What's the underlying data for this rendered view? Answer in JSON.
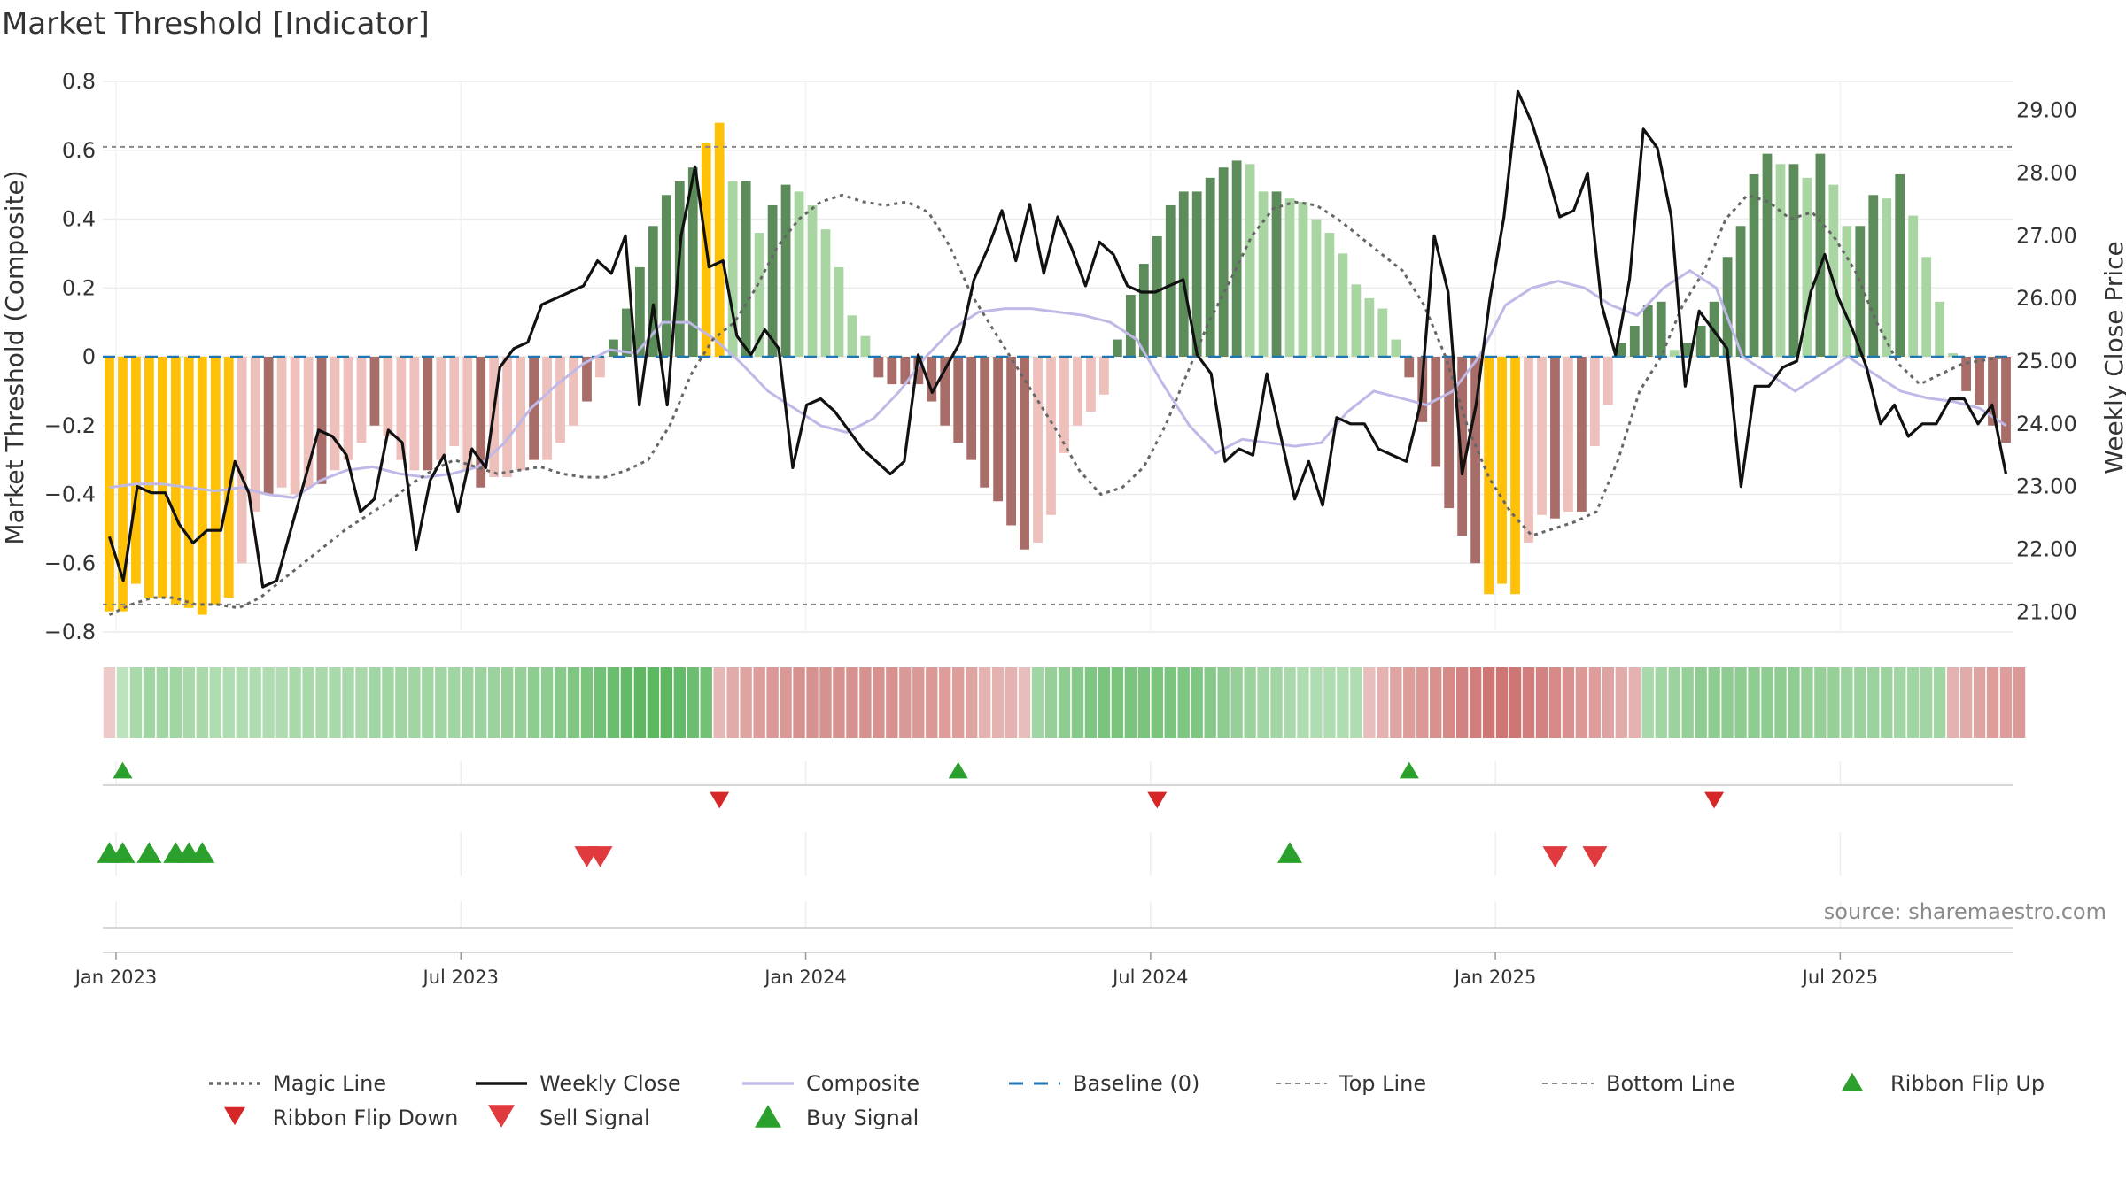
{
  "colors": {
    "gold": "#ffc107",
    "bull_strong": "#5b8c5a",
    "bull_light": "#a8d5a2",
    "bear_strong": "#a86d68",
    "bear_light": "#eec0bb",
    "weekly_close": "#111111",
    "composite": "#c0b8e6",
    "magic_line": "#666666",
    "baseline": "#1f77b4",
    "threshold_line": "#888888",
    "buy": "#2ca02c",
    "sell": "#d62728",
    "ribbon_green": "#4caf50",
    "ribbon_red": "#c0504d"
  },
  "chart_data": {
    "type": "bar",
    "title": "Market Threshold [Indicator]",
    "ylabel_left": "Market Threshold (Composite)",
    "ylabel_right": "Weekly Close Price",
    "source": "source: sharemaestro.com",
    "ylim_left": [
      -0.8,
      0.8
    ],
    "ylim_right": [
      20.68,
      29.46
    ],
    "yticks_left": [
      "0.8",
      "0.6",
      "0.4",
      "0.2",
      "0",
      "−0.2",
      "−0.4",
      "−0.6",
      "−0.8"
    ],
    "yticks_left_values": [
      0.8,
      0.6,
      0.4,
      0.2,
      0,
      -0.2,
      -0.4,
      -0.6,
      -0.8
    ],
    "yticks_right": [
      "29.00",
      "28.00",
      "27.00",
      "26.00",
      "25.00",
      "24.00",
      "23.00",
      "22.00",
      "21.00"
    ],
    "yticks_right_values": [
      29,
      28,
      27,
      26,
      25,
      24,
      23,
      22,
      21
    ],
    "xticks": [
      "Jan 2023",
      "Jul 2023",
      "Jan 2024",
      "Jul 2024",
      "Jan 2025",
      "Jul 2025"
    ],
    "xticks_week": [
      1,
      27,
      53,
      79,
      105,
      131
    ],
    "top_line": 0.61,
    "bottom_line": -0.72,
    "weeks": 144,
    "bars": [
      -0.74,
      -0.74,
      -0.66,
      -0.7,
      -0.7,
      -0.72,
      -0.73,
      -0.75,
      -0.72,
      -0.7,
      -0.6,
      -0.45,
      -0.4,
      -0.38,
      -0.4,
      -0.38,
      -0.37,
      -0.33,
      -0.3,
      -0.25,
      -0.2,
      -0.23,
      -0.3,
      -0.33,
      -0.33,
      -0.3,
      -0.26,
      -0.33,
      -0.38,
      -0.35,
      -0.35,
      -0.33,
      -0.3,
      -0.3,
      -0.25,
      -0.2,
      -0.13,
      -0.06,
      0.05,
      0.14,
      0.26,
      0.38,
      0.47,
      0.51,
      0.55,
      0.62,
      0.68,
      0.51,
      0.51,
      0.36,
      0.44,
      0.5,
      0.48,
      0.44,
      0.37,
      0.26,
      0.12,
      0.06,
      -0.06,
      -0.08,
      -0.08,
      -0.08,
      -0.13,
      -0.2,
      -0.25,
      -0.3,
      -0.38,
      -0.42,
      -0.49,
      -0.56,
      -0.54,
      -0.46,
      -0.28,
      -0.2,
      -0.16,
      -0.11,
      0.05,
      0.18,
      0.27,
      0.35,
      0.44,
      0.48,
      0.48,
      0.52,
      0.55,
      0.57,
      0.56,
      0.48,
      0.48,
      0.46,
      0.45,
      0.4,
      0.36,
      0.3,
      0.21,
      0.17,
      0.14,
      0.05,
      -0.06,
      -0.19,
      -0.32,
      -0.44,
      -0.52,
      -0.6,
      -0.69,
      -0.66,
      -0.69,
      -0.54,
      -0.46,
      -0.47,
      -0.45,
      -0.45,
      -0.26,
      -0.14,
      0.04,
      0.09,
      0.15,
      0.16,
      0.02,
      0.04,
      0.09,
      0.16,
      0.29,
      0.38,
      0.53,
      0.59,
      0.56,
      0.56,
      0.52,
      0.59,
      0.5,
      0.38,
      0.38,
      0.47,
      0.46,
      0.53,
      0.41,
      0.29,
      0.16,
      0.01,
      -0.1,
      -0.14,
      -0.2,
      -0.25
    ],
    "magic_line": [
      -0.75,
      -0.72,
      -0.7,
      -0.7,
      -0.72,
      -0.72,
      -0.73,
      -0.7,
      -0.65,
      -0.6,
      -0.55,
      -0.5,
      -0.46,
      -0.42,
      -0.37,
      -0.33,
      -0.3,
      -0.32,
      -0.34,
      -0.33,
      -0.32,
      -0.34,
      -0.35,
      -0.35,
      -0.33,
      -0.3,
      -0.2,
      -0.05,
      0.05,
      0.1,
      0.2,
      0.32,
      0.4,
      0.45,
      0.47,
      0.45,
      0.44,
      0.45,
      0.42,
      0.32,
      0.18,
      0.08,
      -0.02,
      -0.12,
      -0.22,
      -0.33,
      -0.4,
      -0.38,
      -0.32,
      -0.2,
      -0.05,
      0.1,
      0.22,
      0.35,
      0.43,
      0.45,
      0.44,
      0.4,
      0.35,
      0.3,
      0.25,
      0.15,
      0.0,
      -0.2,
      -0.35,
      -0.45,
      -0.52,
      -0.5,
      -0.48,
      -0.45,
      -0.3,
      -0.1,
      0.0,
      0.15,
      0.25,
      0.4,
      0.47,
      0.45,
      0.4,
      0.42,
      0.35,
      0.25,
      0.1,
      -0.02,
      -0.08,
      -0.05,
      -0.02,
      -0.01,
      0.0
    ],
    "composite": [
      -0.38,
      -0.37,
      -0.37,
      -0.38,
      -0.39,
      -0.38,
      -0.4,
      -0.41,
      -0.36,
      -0.33,
      -0.32,
      -0.34,
      -0.35,
      -0.34,
      -0.32,
      -0.25,
      -0.15,
      -0.08,
      -0.02,
      0.02,
      0.01,
      0.1,
      0.1,
      0.05,
      -0.02,
      -0.1,
      -0.15,
      -0.2,
      -0.22,
      -0.18,
      -0.1,
      0.0,
      0.08,
      0.13,
      0.14,
      0.14,
      0.13,
      0.12,
      0.1,
      0.05,
      -0.08,
      -0.2,
      -0.28,
      -0.24,
      -0.25,
      -0.26,
      -0.25,
      -0.16,
      -0.1,
      -0.12,
      -0.14,
      -0.1,
      0.0,
      0.15,
      0.2,
      0.22,
      0.2,
      0.15,
      0.12,
      0.2,
      0.25,
      0.2,
      0.0,
      -0.05,
      -0.1,
      -0.05,
      0.0,
      -0.05,
      -0.1,
      -0.12,
      -0.13,
      -0.15,
      -0.2
    ],
    "weekly_close_right": [
      22.2,
      21.5,
      23,
      22.9,
      22.9,
      22.4,
      22.1,
      22.3,
      22.3,
      23.4,
      22.9,
      21.4,
      21.5,
      22.3,
      23.1,
      23.9,
      23.8,
      23.5,
      22.6,
      22.8,
      23.9,
      23.7,
      22,
      23.1,
      23.5,
      22.6,
      23.6,
      23.3,
      24.9,
      25.2,
      25.3,
      25.9,
      26,
      26.1,
      26.2,
      26.6,
      26.4,
      27,
      24.3,
      25.9,
      24.3,
      27,
      28.1,
      26.5,
      26.6,
      25.4,
      25.1,
      25.5,
      25.2,
      23.3,
      24.3,
      24.4,
      24.2,
      23.9,
      23.6,
      23.4,
      23.2,
      23.4,
      25.1,
      24.5,
      24.9,
      25.3,
      26.3,
      26.8,
      27.4,
      26.6,
      27.5,
      26.4,
      27.3,
      26.8,
      26.2,
      26.9,
      26.7,
      26.2,
      26.1,
      26.1,
      26.2,
      26.3,
      25.1,
      24.8,
      23.4,
      23.6,
      23.5,
      24.8,
      23.8,
      22.8,
      23.4,
      22.7,
      24.1,
      24,
      24,
      23.6,
      23.5,
      23.4,
      24.3,
      27,
      26.1,
      23.2,
      24.3,
      26,
      27.3,
      29.3,
      28.8,
      28.1,
      27.3,
      27.4,
      28,
      25.9,
      25.1,
      26.3,
      28.7,
      28.4,
      27.3,
      24.6,
      25.8,
      25.5,
      25.2,
      23,
      24.6,
      24.6,
      24.9,
      25,
      26.1,
      26.7,
      26,
      25.5,
      24.9,
      24,
      24.3,
      23.8,
      24,
      24,
      24.4,
      24.4,
      24,
      24.3,
      23.2
    ],
    "ribbon_values": [
      -0.1,
      0.2,
      0.35,
      0.4,
      0.4,
      0.4,
      0.35,
      0.35,
      0.3,
      0.3,
      0.3,
      0.3,
      0.3,
      0.3,
      0.35,
      0.35,
      0.35,
      0.35,
      0.35,
      0.35,
      0.4,
      0.4,
      0.4,
      0.4,
      0.4,
      0.4,
      0.4,
      0.45,
      0.45,
      0.45,
      0.5,
      0.5,
      0.55,
      0.55,
      0.6,
      0.65,
      0.7,
      0.75,
      0.8,
      0.85,
      0.9,
      0.9,
      0.9,
      0.85,
      0.8,
      0.75,
      -0.25,
      -0.35,
      -0.4,
      -0.45,
      -0.5,
      -0.5,
      -0.55,
      -0.55,
      -0.55,
      -0.55,
      -0.55,
      -0.55,
      -0.55,
      -0.55,
      -0.5,
      -0.5,
      -0.5,
      -0.45,
      -0.45,
      -0.4,
      -0.3,
      -0.3,
      -0.3,
      -0.2,
      0.4,
      0.5,
      0.55,
      0.6,
      0.65,
      0.7,
      0.7,
      0.7,
      0.7,
      0.7,
      0.7,
      0.65,
      0.65,
      0.6,
      0.55,
      0.5,
      0.45,
      0.4,
      0.4,
      0.35,
      0.3,
      0.3,
      0.3,
      0.3,
      0.3,
      -0.2,
      -0.3,
      -0.4,
      -0.45,
      -0.5,
      -0.55,
      -0.6,
      -0.65,
      -0.7,
      -0.75,
      -0.75,
      -0.75,
      -0.7,
      -0.65,
      -0.6,
      -0.55,
      -0.5,
      -0.45,
      -0.4,
      -0.35,
      -0.3,
      0.35,
      0.4,
      0.45,
      0.5,
      0.55,
      0.55,
      0.55,
      0.55,
      0.55,
      0.55,
      0.55,
      0.55,
      0.5,
      0.5,
      0.5,
      0.45,
      0.45,
      0.45,
      0.45,
      0.4,
      0.4,
      0.4,
      0.4,
      -0.3,
      -0.35,
      -0.4,
      -0.45,
      -0.45,
      -0.5
    ],
    "ribbon_flip_up": [
      1,
      64,
      98
    ],
    "ribbon_flip_down": [
      46,
      79,
      121
    ],
    "buy_signals": [
      0,
      1,
      3,
      5,
      6,
      7,
      89
    ],
    "sell_signals": [
      36,
      37,
      109,
      112
    ],
    "legend": [
      {
        "label": "Magic Line",
        "kind": "dotted",
        "color": "#666666"
      },
      {
        "label": "Weekly Close",
        "kind": "solid",
        "color": "#111111"
      },
      {
        "label": "Composite",
        "kind": "solid",
        "color": "#c0b8e6"
      },
      {
        "label": "Baseline (0)",
        "kind": "dashed",
        "color": "#1f77b4"
      },
      {
        "label": "Top Line",
        "kind": "thin-dashed",
        "color": "#888888"
      },
      {
        "label": "Bottom Line",
        "kind": "thin-dashed",
        "color": "#888888"
      },
      {
        "label": "Ribbon Flip Up",
        "kind": "tri-up-small",
        "color": "#2ca02c"
      },
      {
        "label": "Ribbon Flip Down",
        "kind": "tri-down-small",
        "color": "#d62728"
      },
      {
        "label": "Sell Signal",
        "kind": "tri-down",
        "color": "#e0393e"
      },
      {
        "label": "Buy Signal",
        "kind": "tri-up",
        "color": "#2ca02c"
      }
    ]
  }
}
